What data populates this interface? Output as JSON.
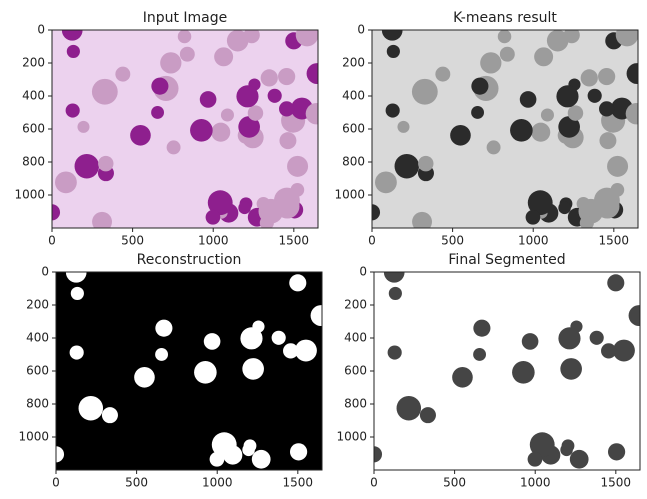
{
  "chart_data": [
    {
      "type": "image",
      "title": "Input Image",
      "xlim": [
        0,
        1650
      ],
      "ylim": [
        1200,
        0
      ],
      "xticks": [
        0,
        500,
        1000,
        1500
      ],
      "yticks": [
        0,
        200,
        400,
        600,
        800,
        1000
      ],
      "background": "#ecd2ee",
      "colors": [
        "#8e1f8e",
        "#c99cc4"
      ]
    },
    {
      "type": "image",
      "title": "K-means result",
      "xlim": [
        0,
        1650
      ],
      "ylim": [
        1200,
        0
      ],
      "xticks": [
        0,
        500,
        1000,
        1500
      ],
      "yticks": [
        0,
        200,
        400,
        600,
        800,
        1000
      ],
      "background": "#d9d9d9",
      "colors": [
        "#2b2b2b",
        "#9c9c9c"
      ]
    },
    {
      "type": "image",
      "title": "Reconstruction",
      "xlim": [
        0,
        1650
      ],
      "ylim": [
        1200,
        0
      ],
      "xticks": [
        0,
        500,
        1000,
        1500
      ],
      "yticks": [
        0,
        200,
        400,
        600,
        800,
        1000
      ],
      "background": "#000000",
      "colors": [
        "#ffffff"
      ]
    },
    {
      "type": "image",
      "title": "Final Segmented",
      "xlim": [
        0,
        1650
      ],
      "ylim": [
        1200,
        0
      ],
      "xticks": [
        0,
        500,
        1000,
        1500
      ],
      "yticks": [
        0,
        200,
        400,
        600,
        800,
        1000
      ],
      "background": "#ffffff",
      "colors": [
        "#454545"
      ]
    }
  ]
}
